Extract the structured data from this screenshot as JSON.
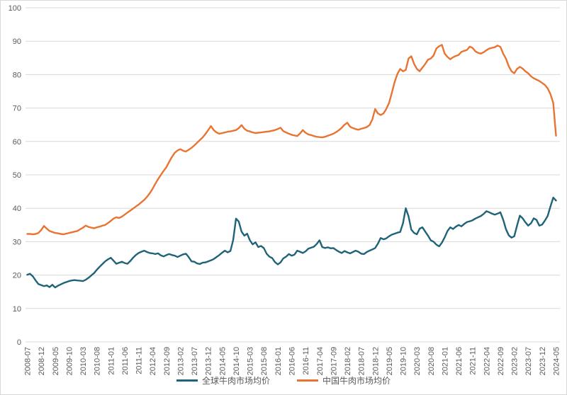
{
  "chart_data": {
    "type": "line",
    "title": "",
    "xlabel": "",
    "ylabel": "",
    "ylim": [
      0,
      100
    ],
    "y_tick_step": 10,
    "y_tick_labels": [
      "0",
      "10",
      "20",
      "30",
      "40",
      "50",
      "60",
      "70",
      "80",
      "90",
      "100"
    ],
    "x_unit": "month",
    "x_range": "2008-07 to 2024-05 (monthly)",
    "x_tick_every_n_months": 5,
    "x_tick_labels": [
      "2008-07",
      "2008-12",
      "2009-05",
      "2009-10",
      "2010-03",
      "2010-08",
      "2011-01",
      "2011-06",
      "2011-11",
      "2012-04",
      "2012-09",
      "2013-02",
      "2013-07",
      "2013-12",
      "2014-05",
      "2014-10",
      "2015-03",
      "2015-08",
      "2016-01",
      "2016-06",
      "2016-11",
      "2017-04",
      "2017-09",
      "2018-02",
      "2018-07",
      "2018-12",
      "2019-05",
      "2019-10",
      "2020-03",
      "2020-08",
      "2021-01",
      "2021-06",
      "2021-11",
      "2022-04",
      "2022-09",
      "2023-02",
      "2023-07",
      "2023-12",
      "2024-05"
    ],
    "grid": "horizontal",
    "legend_position": "bottom-center",
    "colors": {
      "grid": "#d9d9d9",
      "axis_text": "#595959",
      "background": "#ffffff"
    },
    "series": [
      {
        "name": "全球牛肉市场均价",
        "color": "#1f6378",
        "values": [
          20.1,
          20.4,
          19.6,
          18.4,
          17.3,
          17.0,
          16.7,
          16.9,
          16.4,
          17.1,
          16.3,
          16.8,
          17.2,
          17.6,
          17.9,
          18.2,
          18.4,
          18.5,
          18.4,
          18.3,
          18.2,
          18.6,
          19.2,
          19.9,
          20.6,
          21.6,
          22.5,
          23.3,
          24.1,
          24.7,
          25.2,
          24.3,
          23.4,
          23.7,
          24.0,
          23.6,
          23.4,
          24.2,
          25.2,
          26.0,
          26.6,
          27.0,
          27.3,
          26.9,
          26.6,
          26.5,
          26.3,
          26.5,
          25.9,
          25.6,
          26.0,
          26.3,
          26.0,
          25.8,
          25.4,
          25.8,
          26.2,
          26.4,
          25.4,
          24.1,
          24.0,
          23.5,
          23.3,
          23.7,
          23.8,
          24.1,
          24.4,
          24.8,
          25.4,
          26.0,
          26.7,
          27.3,
          26.8,
          27.2,
          30.5,
          36.9,
          36.0,
          33.0,
          31.8,
          32.4,
          30.4,
          29.2,
          29.8,
          28.4,
          28.7,
          28.1,
          26.4,
          25.5,
          25.1,
          23.9,
          23.2,
          23.8,
          25.0,
          25.5,
          26.3,
          25.8,
          26.1,
          27.3,
          27.0,
          26.6,
          27.1,
          27.9,
          28.2,
          28.5,
          29.3,
          30.4,
          28.4,
          28.1,
          28.3,
          28.0,
          28.1,
          27.5,
          27.0,
          26.6,
          27.2,
          26.8,
          26.5,
          26.9,
          27.3,
          27.0,
          26.4,
          26.3,
          26.9,
          27.3,
          27.7,
          28.1,
          29.4,
          31.1,
          30.7,
          31.0,
          31.6,
          32.1,
          32.4,
          32.7,
          32.9,
          35.5,
          40.0,
          37.6,
          33.6,
          32.6,
          32.2,
          33.9,
          34.3,
          33.0,
          31.8,
          30.4,
          30.0,
          29.1,
          28.6,
          29.7,
          31.3,
          33.2,
          34.3,
          33.8,
          34.5,
          35.0,
          34.6,
          35.3,
          35.9,
          36.1,
          36.4,
          36.9,
          37.3,
          37.7,
          38.3,
          39.1,
          38.8,
          38.4,
          38.1,
          38.4,
          38.8,
          36.6,
          33.8,
          31.9,
          31.2,
          31.6,
          34.8,
          37.8,
          37.0,
          35.8,
          34.8,
          35.5,
          37.0,
          36.5,
          34.8,
          35.1,
          36.3,
          37.7,
          40.5,
          43.2,
          42.3
        ]
      },
      {
        "name": "中国牛肉市场均价",
        "color": "#e97432",
        "values": [
          32.3,
          32.3,
          32.2,
          32.3,
          32.6,
          33.5,
          34.7,
          33.9,
          33.2,
          32.9,
          32.6,
          32.5,
          32.3,
          32.2,
          32.4,
          32.6,
          32.8,
          33.0,
          33.2,
          33.7,
          34.2,
          34.8,
          34.4,
          34.2,
          34.0,
          34.3,
          34.5,
          34.8,
          35.0,
          35.6,
          36.2,
          36.9,
          37.3,
          37.1,
          37.5,
          38.1,
          38.7,
          39.3,
          39.9,
          40.5,
          41.1,
          41.8,
          42.5,
          43.4,
          44.5,
          45.8,
          47.3,
          48.7,
          50.0,
          51.2,
          52.3,
          53.9,
          55.4,
          56.6,
          57.3,
          57.7,
          57.2,
          57.0,
          57.5,
          58.1,
          58.8,
          59.6,
          60.4,
          61.2,
          62.2,
          63.4,
          64.6,
          63.4,
          62.7,
          62.3,
          62.5,
          62.7,
          62.9,
          63.0,
          63.2,
          63.4,
          64.0,
          64.9,
          63.8,
          63.2,
          63.0,
          62.7,
          62.5,
          62.6,
          62.7,
          62.8,
          62.9,
          63.0,
          63.2,
          63.4,
          63.7,
          64.1,
          63.1,
          62.7,
          62.3,
          62.0,
          61.8,
          61.6,
          62.4,
          63.4,
          62.6,
          62.1,
          61.9,
          61.6,
          61.4,
          61.3,
          61.2,
          61.4,
          61.7,
          62.0,
          62.3,
          62.8,
          63.4,
          64.1,
          65.0,
          65.6,
          64.4,
          64.0,
          63.7,
          63.5,
          63.8,
          64.0,
          64.3,
          64.9,
          66.6,
          69.7,
          68.4,
          67.9,
          68.4,
          69.7,
          71.5,
          74.5,
          77.8,
          80.2,
          81.7,
          81.0,
          81.4,
          84.8,
          85.5,
          83.2,
          81.7,
          81.0,
          82.1,
          83.2,
          84.5,
          84.8,
          85.7,
          87.8,
          88.5,
          88.9,
          86.3,
          85.3,
          84.6,
          85.2,
          85.6,
          85.9,
          86.8,
          87.1,
          87.4,
          88.4,
          88.0,
          87.0,
          86.5,
          86.3,
          86.7,
          87.3,
          87.8,
          88.0,
          88.2,
          88.7,
          88.3,
          86.3,
          84.8,
          82.5,
          81.0,
          80.4,
          81.7,
          82.3,
          81.8,
          81.0,
          80.4,
          79.5,
          78.9,
          78.5,
          78.1,
          77.5,
          76.9,
          75.9,
          74.2,
          71.5,
          61.7
        ]
      }
    ]
  },
  "legend": {
    "items": [
      {
        "label": "全球牛肉市场均价",
        "color": "#1f6378"
      },
      {
        "label": "中国牛肉市场均价",
        "color": "#e97432"
      }
    ]
  }
}
